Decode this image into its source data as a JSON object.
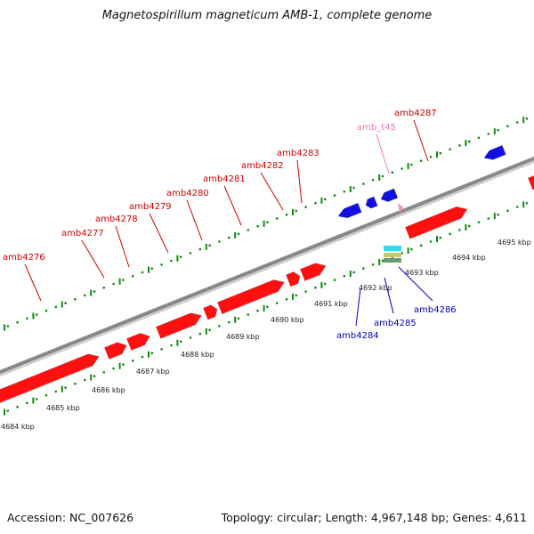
{
  "title": "Magnetospirillum magneticum AMB-1, complete genome",
  "footer": {
    "accession": "Accession: NC_007626",
    "summary": "Topology: circular; Length: 4,967,148 bp; Genes: 4,611"
  },
  "colors": {
    "forward_gene": "#ff1010",
    "reverse_gene": "#1010e0",
    "trna": "#ff88cc",
    "forward_label": "#cc0000",
    "reverse_label": "#0000bb",
    "trna_label": "#ee77bb",
    "tick": "#118811",
    "backbone": "#888888"
  },
  "scale": {
    "kbp_labels": [
      "4684 kbp",
      "4685 kbp",
      "4686 kbp",
      "4687 kbp",
      "4688 kbp",
      "4689 kbp",
      "4690 kbp",
      "4691 kbp",
      "4692 kbp",
      "4693 kbp",
      "4694 kbp",
      "4695 kbp"
    ]
  },
  "genes_forward": [
    {
      "name": "amb4276"
    },
    {
      "name": "amb4277"
    },
    {
      "name": "amb4278"
    },
    {
      "name": "amb4279"
    },
    {
      "name": "amb4280"
    },
    {
      "name": "amb4281"
    },
    {
      "name": "amb4282"
    },
    {
      "name": "amb4283"
    },
    {
      "name": "amb4287"
    }
  ],
  "trna": [
    {
      "name": "amb_t45"
    }
  ],
  "genes_reverse": [
    {
      "name": "amb4284"
    },
    {
      "name": "amb4285"
    },
    {
      "name": "amb4286"
    }
  ]
}
